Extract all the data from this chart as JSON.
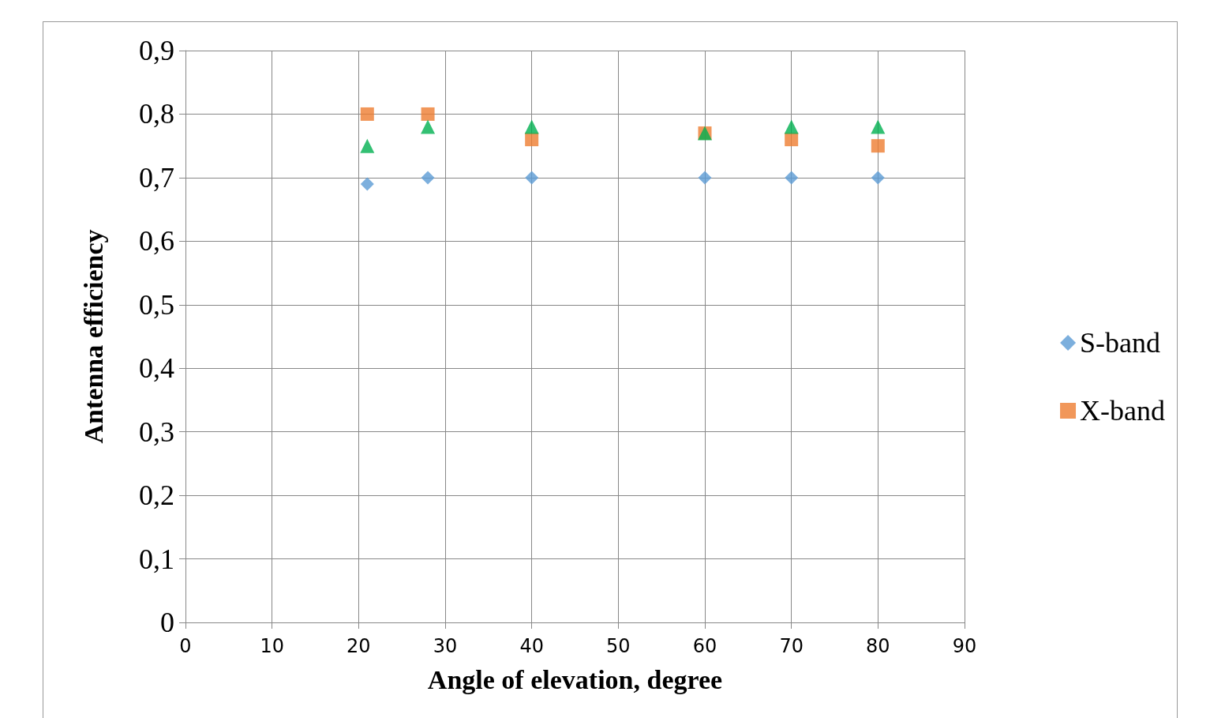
{
  "chart_data": {
    "type": "scatter",
    "xlabel": "Angle of elevation, degree",
    "ylabel": "Antenna efficiency",
    "x": [
      21,
      28,
      40,
      60,
      70,
      80
    ],
    "series": [
      {
        "name": "S-band",
        "color": "#5b9bd5",
        "marker": "diamond",
        "values": [
          0.69,
          0.7,
          0.7,
          0.7,
          0.7,
          0.7
        ]
      },
      {
        "name": "X-band",
        "color": "#ed7d31",
        "marker": "square",
        "values": [
          0.8,
          0.8,
          0.76,
          0.77,
          0.76,
          0.75
        ]
      },
      {
        "color": "#00b050",
        "marker": "triangle",
        "values": [
          0.75,
          0.78,
          0.78,
          0.77,
          0.78,
          0.78
        ]
      }
    ],
    "xlim": [
      0,
      90
    ],
    "xticks": [
      0,
      10,
      20,
      30,
      40,
      50,
      60,
      70,
      80,
      90
    ],
    "ylim": [
      0,
      0.9
    ],
    "yticks": [
      {
        "value": 0,
        "label": "0"
      },
      {
        "value": 0.1,
        "label": "0,1"
      },
      {
        "value": 0.2,
        "label": "0,2"
      },
      {
        "value": 0.3,
        "label": "0,3"
      },
      {
        "value": 0.4,
        "label": "0,4"
      },
      {
        "value": 0.5,
        "label": "0,5"
      },
      {
        "value": 0.6,
        "label": "0,6"
      },
      {
        "value": 0.7,
        "label": "0,7"
      },
      {
        "value": 0.8,
        "label": "0,8"
      },
      {
        "value": 0.9,
        "label": "0,9"
      }
    ],
    "grid": true,
    "legend": "right"
  }
}
